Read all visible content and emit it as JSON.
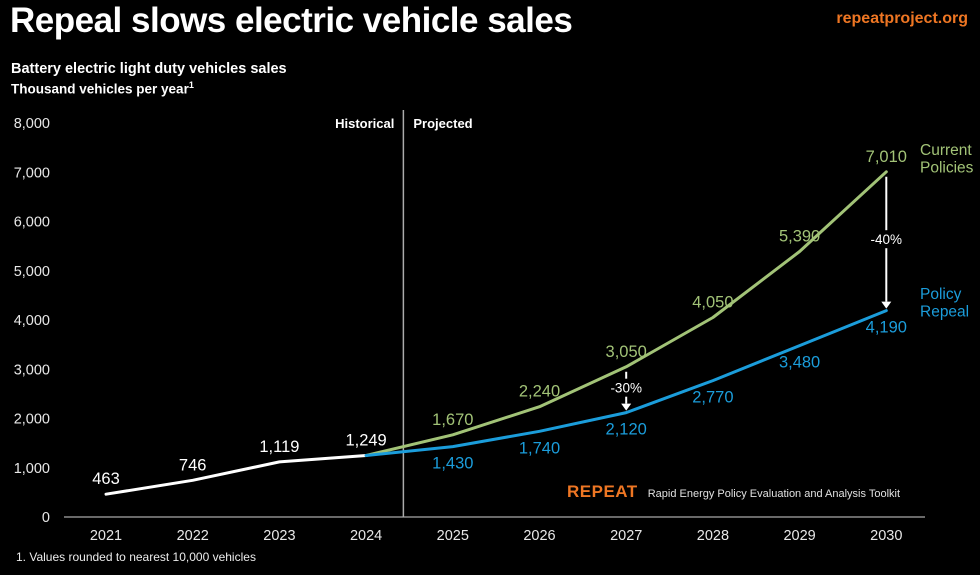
{
  "header": {
    "title": "Repeal slows electric vehicle sales",
    "site_link": "repeatproject.org"
  },
  "subtitle": {
    "line1": "Battery electric light duty vehicles sales",
    "line2": "Thousand vehicles per year",
    "footnote_ref": "1"
  },
  "chart_data": {
    "type": "line",
    "title": "Battery electric light duty vehicles sales",
    "ylabel": "Thousand vehicles per year",
    "ylim": [
      0,
      8000
    ],
    "ytick_step": 1000,
    "grid": false,
    "legend_position": "right",
    "x": [
      2021,
      2022,
      2023,
      2024,
      2025,
      2026,
      2027,
      2028,
      2029,
      2030
    ],
    "series": [
      {
        "name": "Historical",
        "color": "#FFFFFF",
        "values": [
          463,
          746,
          1119,
          1249,
          null,
          null,
          null,
          null,
          null,
          null
        ],
        "label_years": [
          2021,
          2022,
          2023,
          2024
        ],
        "label_side": "above"
      },
      {
        "name": "Current Policies",
        "color": "#A2C377",
        "values": [
          null,
          null,
          null,
          1249,
          1670,
          2240,
          3050,
          4050,
          5390,
          7010
        ],
        "label_years": [
          2025,
          2026,
          2027,
          2028,
          2029,
          2030
        ],
        "label_side": "above"
      },
      {
        "name": "Policy Repeal",
        "color": "#1B9DDB",
        "values": [
          null,
          null,
          null,
          1249,
          1430,
          1740,
          2120,
          2770,
          3480,
          4190
        ],
        "label_years": [
          2025,
          2026,
          2027,
          2028,
          2029,
          2030
        ],
        "label_side": "below"
      }
    ],
    "divider": {
      "left_label": "Historical",
      "right_label": "Projected"
    },
    "annotations": [
      {
        "x": 2027,
        "label": "-30%"
      },
      {
        "x": 2030,
        "label": "-40%"
      }
    ],
    "legend": [
      {
        "series": 1,
        "lines": [
          "Current",
          "Policies"
        ]
      },
      {
        "series": 2,
        "lines": [
          "Policy",
          "Repeal"
        ]
      }
    ]
  },
  "branding": {
    "logo": "REPEAT",
    "tagline": "Rapid Energy Policy Evaluation and Analysis Toolkit"
  },
  "footnote": "1. Values rounded to nearest 10,000 vehicles",
  "colors": {
    "background": "#000000",
    "accent_orange": "#EE7623",
    "current_policies_green": "#A2C377",
    "policy_repeal_blue": "#1B9DDB",
    "historical_white": "#FFFFFF",
    "axis_text": "#E8E8E8",
    "axis_line": "#8C8C8C",
    "divider_line": "#ABABAB"
  }
}
